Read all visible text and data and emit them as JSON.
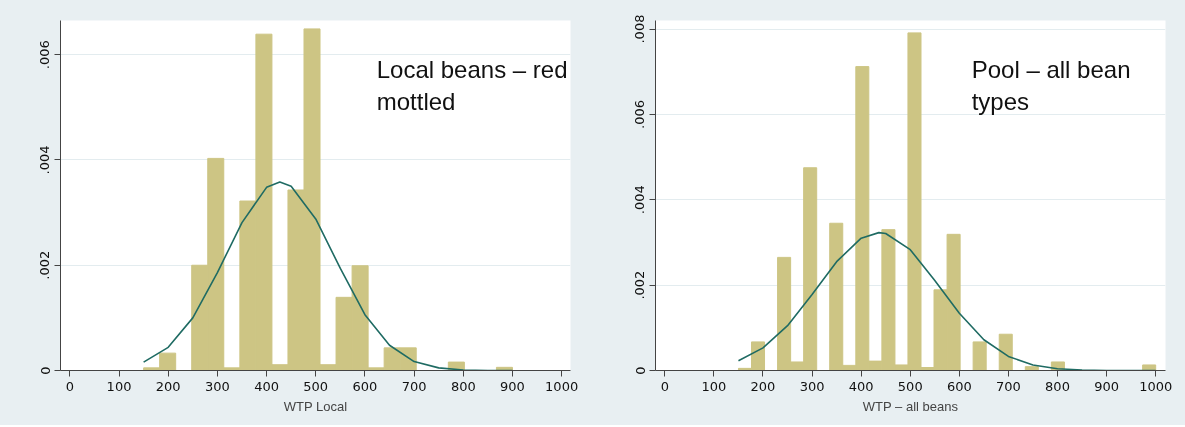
{
  "chart_data": [
    {
      "type": "histogram",
      "xlabel": "WTP Local",
      "annotations": [
        "Local beans – red\nmottled"
      ],
      "color": "#cdc584",
      "grid": "y",
      "bins": [
        150,
        182.6,
        215.2,
        247.8,
        280.4,
        313.0,
        345.7,
        378.3,
        410.9,
        443.5,
        476.1,
        508.7,
        541.3,
        573.9,
        606.5,
        639.1,
        671.7,
        704.3,
        736.9,
        769.6,
        802.2,
        834.8,
        867.4,
        900
      ],
      "values": [
        5e-05,
        0.00033,
        0,
        0.002,
        0.00403,
        5e-05,
        0.00322,
        0.00639,
        0.00011,
        0.00343,
        0.00649,
        0.00011,
        0.00139,
        0.00199,
        5e-05,
        0.00043,
        0.00043,
        0,
        0,
        0.00016,
        0,
        0,
        6e-05
      ],
      "series": [
        {
          "type": "line",
          "color": "#1f6b63",
          "x": [
            150,
            200,
            250,
            300,
            350,
            400,
            427,
            450,
            500,
            550,
            600,
            650,
            700,
            750,
            800,
            850,
            900
          ],
          "values": [
            0.00016,
            0.00044,
            0.001,
            0.00186,
            0.00281,
            0.00348,
            0.00358,
            0.0035,
            0.00288,
            0.00194,
            0.00106,
            0.00048,
            0.00017,
            5e-05,
            1e-05,
            0,
            0
          ]
        }
      ],
      "xlim": [
        -19,
        1018
      ],
      "xticks": [
        0,
        100,
        200,
        300,
        400,
        500,
        600,
        700,
        800,
        900,
        1000
      ],
      "ylim": [
        0,
        0.00665
      ],
      "yticks": [
        0,
        {
          "value": 0.002,
          "label": ".002"
        },
        {
          "value": 0.004,
          "label": ".004"
        },
        {
          "value": 0.006,
          "label": ".006"
        }
      ]
    },
    {
      "type": "histogram",
      "xlabel": "WTP – all beans",
      "annotations": [
        "Pool – all bean\ntypes"
      ],
      "color": "#cdc584",
      "grid": "y",
      "bins": [
        150,
        176.6,
        203.1,
        229.7,
        256.3,
        282.8,
        309.4,
        335.9,
        362.5,
        389.1,
        415.6,
        442.2,
        468.8,
        495.3,
        521.9,
        548.4,
        575,
        601.6,
        628.1,
        654.7,
        681.3,
        707.8,
        734.4,
        760.9,
        787.5,
        814.1,
        840.6,
        867.2,
        893.8,
        920.3,
        946.9,
        973.4,
        1000
      ],
      "values": [
        5e-05,
        0.00067,
        0,
        0.00265,
        0.0002,
        0.00475,
        0,
        0.00345,
        0.00012,
        0.00712,
        0.00022,
        0.0033,
        0.00013,
        0.00791,
        7e-05,
        0.00189,
        0.00319,
        0,
        0.00067,
        0,
        0.00085,
        0,
        9e-05,
        0,
        0.0002,
        0,
        0,
        0,
        0,
        0,
        0,
        0.00013
      ],
      "series": [
        {
          "type": "line",
          "color": "#1f6b63",
          "x": [
            150,
            200,
            250,
            300,
            350,
            400,
            436,
            450,
            500,
            550,
            600,
            650,
            700,
            750,
            800,
            850,
            900,
            950,
            1000
          ],
          "values": [
            0.00023,
            0.00053,
            0.00105,
            0.00178,
            0.00255,
            0.0031,
            0.00323,
            0.00321,
            0.00283,
            0.00211,
            0.00134,
            0.00072,
            0.00033,
            0.00013,
            4e-05,
            1e-05,
            0,
            0,
            0
          ]
        }
      ],
      "xlim": [
        -19,
        1020
      ],
      "xticks": [
        0,
        100,
        200,
        300,
        400,
        500,
        600,
        700,
        800,
        900,
        1000
      ],
      "ylim": [
        0,
        0.0082
      ],
      "yticks": [
        0,
        {
          "value": 0.002,
          "label": ".002"
        },
        {
          "value": 0.004,
          "label": ".004"
        },
        {
          "value": 0.006,
          "label": ".006"
        },
        {
          "value": 0.008,
          "label": ".008"
        }
      ]
    }
  ]
}
